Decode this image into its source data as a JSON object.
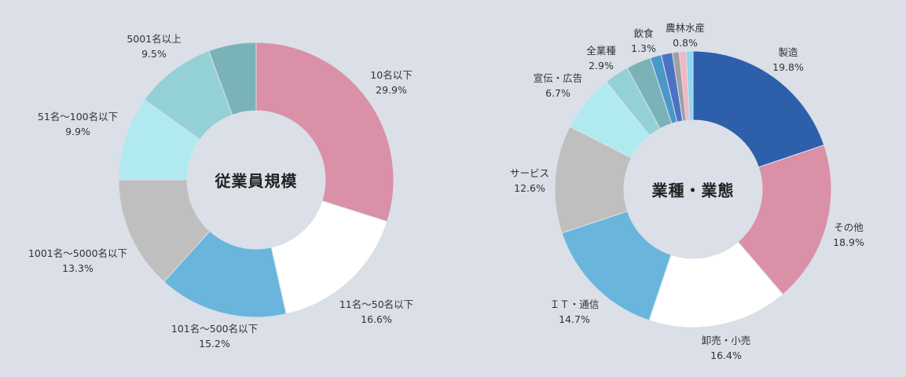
{
  "chart_data": [
    {
      "type": "donut",
      "title": "従業員規模",
      "slices": [
        {
          "label": "10名以下",
          "pct_label": "29.9%",
          "value": 29.9,
          "color": "#da90a6"
        },
        {
          "label": "11名～50名以下",
          "pct_label": "16.6%",
          "value": 16.6,
          "color": "#ffffff"
        },
        {
          "label": "101名～500名以下",
          "pct_label": "15.2%",
          "value": 15.2,
          "color": "#6ab5dc"
        },
        {
          "label": "1001名～5000名以下",
          "pct_label": "13.3%",
          "value": 13.3,
          "color": "#bfbfbf"
        },
        {
          "label": "51名～100名以下",
          "pct_label": "9.9%",
          "value": 9.9,
          "color": "#b0eaf0"
        },
        {
          "label": "5001名以上",
          "pct_label": "9.5%",
          "value": 9.5,
          "color": "#94d1d6"
        },
        {
          "label": "",
          "pct_label": "",
          "value": 5.6,
          "color": "#7ab3b7"
        }
      ]
    },
    {
      "type": "donut",
      "title": "業種・業態",
      "slices": [
        {
          "label": "製造",
          "pct_label": "19.8%",
          "value": 19.8,
          "color": "#2e5faa"
        },
        {
          "label": "その他",
          "pct_label": "18.9%",
          "value": 18.9,
          "color": "#da90a6"
        },
        {
          "label": "卸売・小売",
          "pct_label": "16.4%",
          "value": 16.4,
          "color": "#ffffff"
        },
        {
          "label": "ＩＴ・通信",
          "pct_label": "14.7%",
          "value": 14.7,
          "color": "#6ab5dc"
        },
        {
          "label": "サービス",
          "pct_label": "12.6%",
          "value": 12.6,
          "color": "#bfbfbf"
        },
        {
          "label": "宣伝・広告",
          "pct_label": "6.7%",
          "value": 6.7,
          "color": "#b0eaf0"
        },
        {
          "label": "",
          "pct_label": "",
          "value": 2.9,
          "color": "#94d1d6"
        },
        {
          "label": "全業種",
          "pct_label": "2.9%",
          "value": 2.9,
          "color": "#7ab3b7"
        },
        {
          "label": "飲食",
          "pct_label": "1.3%",
          "value": 1.3,
          "color": "#4a98c9"
        },
        {
          "label": "",
          "pct_label": "",
          "value": 1.3,
          "color": "#4c72c4"
        },
        {
          "label": "",
          "pct_label": "",
          "value": 0.8,
          "color": "#a0a0a0"
        },
        {
          "label": "",
          "pct_label": "",
          "value": 0.8,
          "color": "#f2b6c6"
        },
        {
          "label": "農林水産",
          "pct_label": "0.8%",
          "value": 0.8,
          "color": "#8fd6f3"
        }
      ]
    }
  ]
}
